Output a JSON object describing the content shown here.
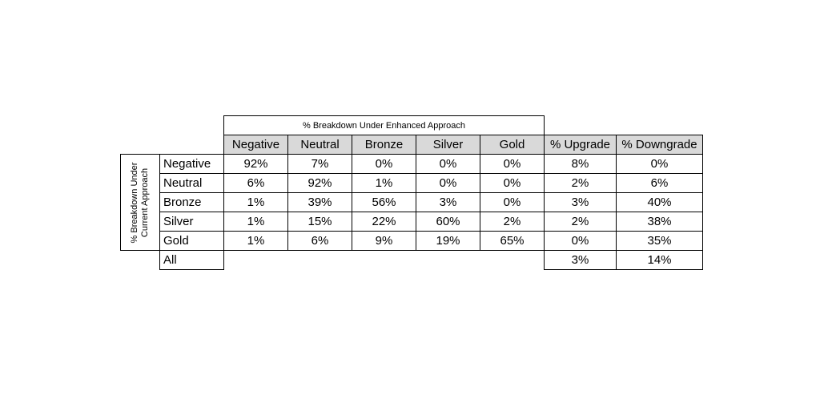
{
  "table": {
    "title": "% Breakdown Under Enhanced Approach",
    "row_title": "% Breakdown Under Current Approach",
    "columns": [
      "Negative",
      "Neutral",
      "Bronze",
      "Silver",
      "Gold",
      "% Upgrade",
      "% Downgrade"
    ],
    "rows": [
      {
        "label": "Negative",
        "cells": [
          "92%",
          "7%",
          "0%",
          "0%",
          "0%",
          "8%",
          "0%"
        ]
      },
      {
        "label": "Neutral",
        "cells": [
          "6%",
          "92%",
          "1%",
          "0%",
          "0%",
          "2%",
          "6%"
        ]
      },
      {
        "label": "Bronze",
        "cells": [
          "1%",
          "39%",
          "56%",
          "3%",
          "0%",
          "3%",
          "40%"
        ]
      },
      {
        "label": "Silver",
        "cells": [
          "1%",
          "15%",
          "22%",
          "60%",
          "2%",
          "2%",
          "38%"
        ]
      },
      {
        "label": "Gold",
        "cells": [
          "1%",
          "6%",
          "9%",
          "19%",
          "65%",
          "0%",
          "35%"
        ]
      }
    ],
    "all": {
      "label": "All",
      "cells": [
        "3%",
        "14%"
      ]
    }
  }
}
